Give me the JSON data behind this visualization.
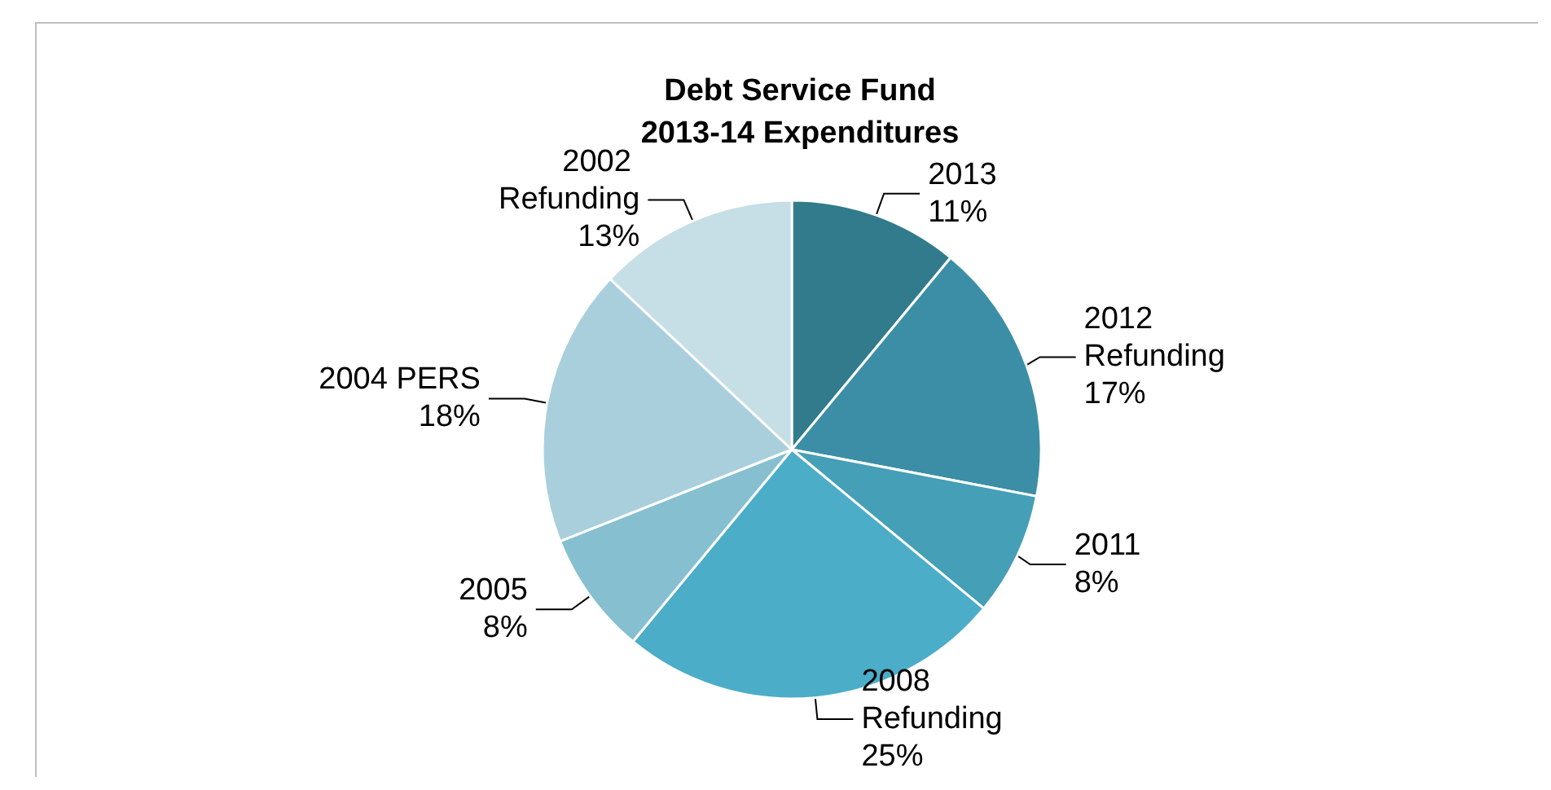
{
  "chart_data": {
    "type": "pie",
    "title": "Debt Service Fund\n2013-14 Expenditures",
    "categories": [
      "2013",
      "2012 Refunding",
      "2011",
      "2008 Refunding",
      "2005",
      "2004 PERS",
      "2002 Refunding"
    ],
    "values": [
      11,
      17,
      8,
      25,
      8,
      18,
      13
    ],
    "value_labels": [
      "11%",
      "17%",
      "8%",
      "25%",
      "8%",
      "18%",
      "13%"
    ],
    "colors": [
      "#317b8c",
      "#3b8ea6",
      "#459fb7",
      "#4badc8",
      "#86bfd0",
      "#a9cfdc",
      "#c6dee6"
    ],
    "legend": false
  }
}
